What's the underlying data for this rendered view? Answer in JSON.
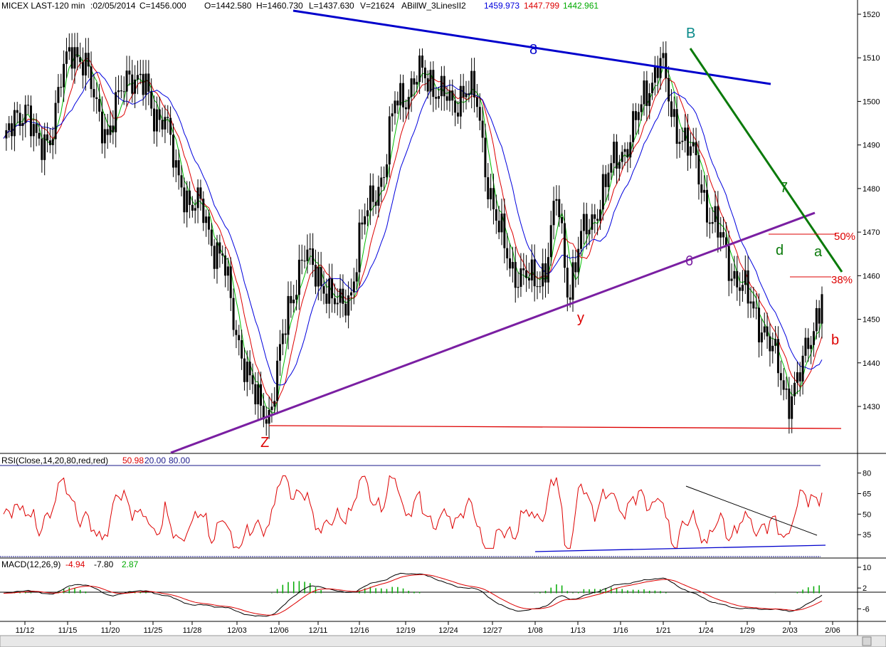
{
  "header": {
    "symbol": "MICEX LAST-120 min",
    "date": ":02/05/2014",
    "close": "C=1456.000",
    "open": "O=1442.580",
    "high": "H=1460.730",
    "low": "L=1437.630",
    "volume": "V=21624",
    "indicator": "ABillW_3LinesII2",
    "ind_blue": "1459.973",
    "ind_red": "1447.799",
    "ind_green": "1442.961"
  },
  "colors": {
    "candle": "#000000",
    "ma_blue": "#0000dd",
    "ma_red": "#dd0000",
    "ma_green": "#00bb00",
    "trend_blue": "#0000cc",
    "trend_purple": "#7a1fa2",
    "trend_green": "#0a7a0a",
    "rsi": "#dd0000",
    "macd": "#000000",
    "signal": "#dd0000",
    "hist": "#00aa00"
  },
  "price_axis": {
    "ticks": [
      "1520",
      "1510",
      "1500",
      "1490",
      "1480",
      "1470",
      "1460",
      "1450",
      "1440",
      "1430"
    ]
  },
  "annotations": {
    "B": "B",
    "y": "y",
    "Z": "Z",
    "d": "d",
    "a": "a",
    "b": "b",
    "line8": "8",
    "line7": "7",
    "line6": "6",
    "fib50": "50%",
    "fib38": "38%"
  },
  "rsi": {
    "label": "RSI(Close,14,20,80,red,red)",
    "value": "50.98",
    "low": "20.00",
    "high": "80.00",
    "ticks": [
      "80",
      "65",
      "50",
      "35"
    ]
  },
  "macd": {
    "label": "MACD(12,26,9)",
    "v1": "-4.94",
    "v2": "-7.80",
    "v3": "2.87",
    "ticks": [
      "10",
      "2",
      "-6"
    ]
  },
  "x_axis": {
    "ticks": [
      "11/12",
      "11/15",
      "11/20",
      "11/25",
      "11/28",
      "12/03",
      "12/06",
      "12/11",
      "12/16",
      "12/19",
      "12/24",
      "12/27",
      "1/08",
      "1/13",
      "1/16",
      "1/21",
      "1/24",
      "1/29",
      "2/03",
      "2/06"
    ]
  },
  "chart_data": {
    "type": "line",
    "title": "MICEX LAST-120 min",
    "series": [
      {
        "name": "Close",
        "values": [
          1490,
          1495,
          1500,
          1488,
          1492,
          1505,
          1512,
          1510,
          1498,
          1493,
          1500,
          1507,
          1505,
          1496,
          1498,
          1482,
          1478,
          1476,
          1468,
          1465,
          1448,
          1440,
          1430,
          1428,
          1442,
          1455,
          1466,
          1460,
          1458,
          1452,
          1455,
          1470,
          1478,
          1484,
          1500,
          1502,
          1506,
          1505,
          1502,
          1498,
          1504,
          1500,
          1482,
          1470,
          1462,
          1460,
          1458,
          1462,
          1478,
          1456,
          1468,
          1472,
          1480,
          1486,
          1490,
          1496,
          1504,
          1510,
          1496,
          1492,
          1486,
          1476,
          1470,
          1462,
          1458,
          1452,
          1448,
          1440,
          1432,
          1436,
          1446,
          1456
        ]
      }
    ]
  }
}
